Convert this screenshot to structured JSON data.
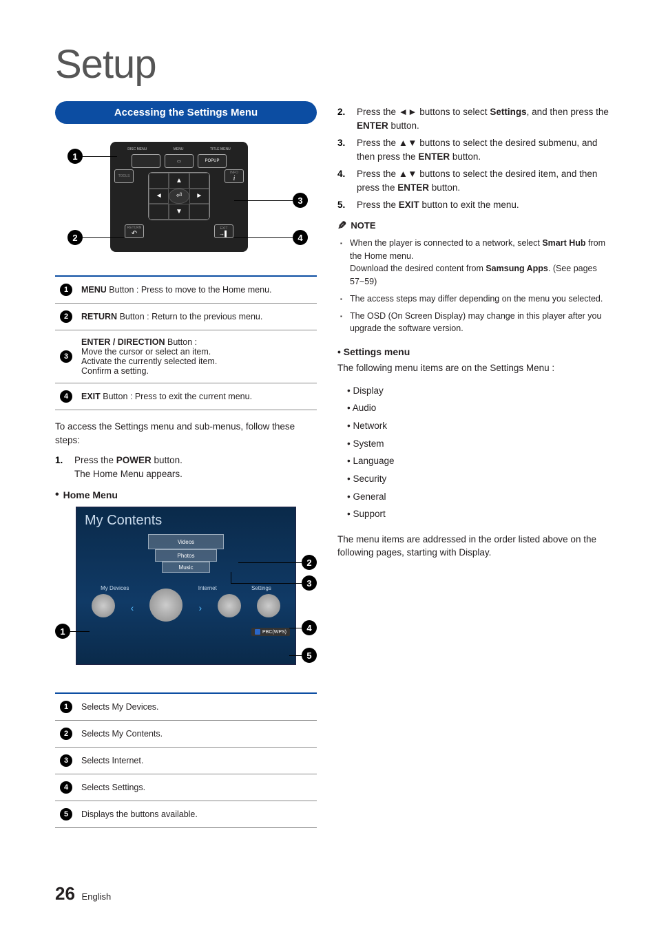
{
  "page": {
    "title": "Setup",
    "number": "26",
    "lang": "English"
  },
  "left": {
    "banner": "Accessing the Settings Menu",
    "remote": {
      "header_labels": [
        "DISC MENU",
        "MENU",
        "TITLE MENU"
      ],
      "row1": [
        "",
        "▭",
        "POPUP"
      ],
      "row2_left": "TOOLS",
      "row2_right": "INFO",
      "row2_right_sub": "i",
      "bottom_left": "RETURN",
      "bottom_right": "EXIT",
      "callouts": {
        "c1": "1",
        "c2": "2",
        "c3": "3",
        "c4": "4"
      }
    },
    "buttons": [
      {
        "n": "1",
        "html": "<strong>MENU</strong> Button : Press to move to the Home menu."
      },
      {
        "n": "2",
        "html": "<strong>RETURN</strong> Button : Return to the previous menu."
      },
      {
        "n": "3",
        "html": "<strong>ENTER / DIRECTION</strong> Button :<br>Move the cursor or select an item.<br>Activate the currently selected item.<br>Confirm a setting."
      },
      {
        "n": "4",
        "html": "<strong>EXIT</strong> Button : Press to exit the current menu."
      }
    ],
    "intro": "To access the Settings menu and sub-menus, follow these steps:",
    "step1": {
      "n": "1.",
      "text": "Press the <strong>POWER</strong> button.<br>The Home Menu appears."
    },
    "home_head": "Home Menu",
    "home": {
      "title": "My Contents",
      "cards": [
        "Videos",
        "Photos",
        "Music"
      ],
      "labels": [
        "My Devices",
        "Internet",
        "Settings"
      ],
      "pbc": "PBC(WPS)",
      "pbc_letter": "d",
      "callouts": {
        "c1": "1",
        "c2": "2",
        "c3": "3",
        "c4": "4",
        "c5": "5"
      }
    },
    "home_table": [
      {
        "n": "1",
        "t": "Selects My Devices."
      },
      {
        "n": "2",
        "t": "Selects My Contents."
      },
      {
        "n": "3",
        "t": "Selects Internet."
      },
      {
        "n": "4",
        "t": "Selects Settings."
      },
      {
        "n": "5",
        "t": "Displays the buttons available."
      }
    ]
  },
  "right": {
    "steps": [
      {
        "n": "2.",
        "t": "Press the ◄► buttons to select <strong>Settings</strong>, and then press the <strong>ENTER</strong> button."
      },
      {
        "n": "3.",
        "t": "Press the ▲▼ buttons to select the desired submenu, and then press the <strong>ENTER</strong> button."
      },
      {
        "n": "4.",
        "t": "Press the ▲▼ buttons to select the desired item, and then press the <strong>ENTER</strong> button."
      },
      {
        "n": "5.",
        "t": "Press the <strong>EXIT</strong> button to exit the menu."
      }
    ],
    "note_label": "NOTE",
    "notes": [
      "When the player is connected to a network, select <strong>Smart Hub</strong> from the Home menu.<br>Download the desired content from <strong>Samsung Apps</strong>. (See pages 57~59)",
      "The access steps may differ depending on the menu you selected.",
      "The OSD (On Screen Display) may change in this player after you upgrade the software version."
    ],
    "settings_head": "Settings menu",
    "settings_intro": "The following menu items are on the Settings Menu :",
    "settings_list": [
      "Display",
      "Audio",
      "Network",
      "System",
      "Language",
      "Security",
      "General",
      "Support"
    ],
    "settings_outro": "The menu items are addressed in the order listed above on the following pages, starting with Display."
  },
  "colors": {
    "banner_bg": "#0c4da2",
    "table_border": "#0c4da2"
  }
}
